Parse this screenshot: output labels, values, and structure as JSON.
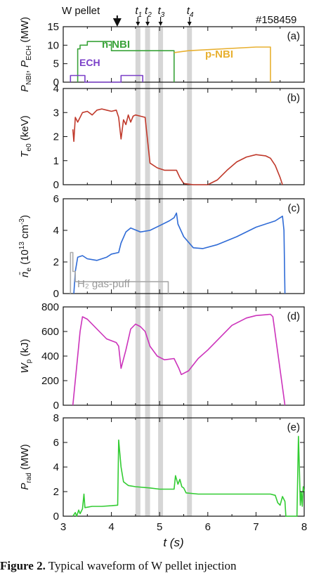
{
  "figure": {
    "shot_number": "#158459",
    "pellet_label": "W pellet",
    "time_markers": [
      {
        "label": "t1",
        "t": 4.55
      },
      {
        "label": "t2",
        "t": 4.75
      },
      {
        "label": "t3",
        "t": 5.02
      },
      {
        "label": "t4",
        "t": 5.62
      }
    ],
    "pellet_time": 4.12,
    "caption_bold": "Figure 2.",
    "caption_text": " Typical waveform of W pellet injection"
  },
  "chart_data": [
    {
      "type": "line",
      "panel": "(a)",
      "ylabel": "P_NBI, P_ECH (MW)",
      "ylim": [
        0,
        15
      ],
      "yticks": [
        0,
        5,
        10,
        15
      ],
      "xlim": [
        3,
        8
      ],
      "series": [
        {
          "name": "n-NBI",
          "color": "#3aa33a",
          "points": [
            [
              3.3,
              0
            ],
            [
              3.3,
              9
            ],
            [
              3.35,
              9
            ],
            [
              3.35,
              10
            ],
            [
              3.5,
              10
            ],
            [
              3.5,
              11
            ],
            [
              4.0,
              11
            ],
            [
              4.0,
              8.5
            ],
            [
              5.3,
              8.5
            ],
            [
              5.3,
              0
            ]
          ]
        },
        {
          "name": "p-NBI",
          "color": "#e8b030",
          "points": [
            [
              5.3,
              8
            ],
            [
              5.6,
              8.5
            ],
            [
              7.0,
              9.5
            ],
            [
              7.3,
              9.5
            ],
            [
              7.3,
              0
            ]
          ]
        },
        {
          "name": "ECH",
          "color": "#7a3fc8",
          "points": [
            [
              3.15,
              0
            ],
            [
              3.15,
              1.8
            ],
            [
              3.45,
              1.8
            ],
            [
              3.45,
              0
            ],
            [
              4.2,
              0
            ],
            [
              4.2,
              1.8
            ],
            [
              4.65,
              1.8
            ],
            [
              4.65,
              0
            ]
          ]
        }
      ]
    },
    {
      "type": "line",
      "panel": "(b)",
      "ylabel": "T_e0 (keV)",
      "ylim": [
        0,
        4
      ],
      "yticks": [
        0,
        1,
        2,
        3,
        4
      ],
      "xlim": [
        3,
        8
      ],
      "series": [
        {
          "name": "",
          "color": "#c0392b",
          "points": [
            [
              3.2,
              2.3
            ],
            [
              3.22,
              1.8
            ],
            [
              3.25,
              2.8
            ],
            [
              3.3,
              2.6
            ],
            [
              3.4,
              3.0
            ],
            [
              3.5,
              3.05
            ],
            [
              3.6,
              2.9
            ],
            [
              3.7,
              3.1
            ],
            [
              3.8,
              3.15
            ],
            [
              3.9,
              3.1
            ],
            [
              4.0,
              3.05
            ],
            [
              4.1,
              3.1
            ],
            [
              4.15,
              2.8
            ],
            [
              4.2,
              1.9
            ],
            [
              4.25,
              2.7
            ],
            [
              4.3,
              2.5
            ],
            [
              4.35,
              2.9
            ],
            [
              4.4,
              2.6
            ],
            [
              4.45,
              2.85
            ],
            [
              4.5,
              2.9
            ],
            [
              4.6,
              2.85
            ],
            [
              4.7,
              2.8
            ],
            [
              4.72,
              2.4
            ],
            [
              4.8,
              0.9
            ],
            [
              4.95,
              0.7
            ],
            [
              5.1,
              0.6
            ],
            [
              5.35,
              0.6
            ],
            [
              5.42,
              0.3
            ],
            [
              5.5,
              0.05
            ],
            [
              5.7,
              0
            ],
            [
              6.0,
              0
            ],
            [
              6.2,
              0.2
            ],
            [
              6.4,
              0.6
            ],
            [
              6.6,
              0.95
            ],
            [
              6.8,
              1.15
            ],
            [
              7.0,
              1.25
            ],
            [
              7.2,
              1.2
            ],
            [
              7.3,
              1.1
            ],
            [
              7.4,
              0.8
            ],
            [
              7.5,
              0.3
            ],
            [
              7.55,
              0
            ]
          ]
        }
      ]
    },
    {
      "type": "line",
      "panel": "(c)",
      "ylabel": "n̄_e (10^13 cm^-3)",
      "ylim": [
        0,
        6
      ],
      "yticks": [
        0,
        2,
        4,
        6
      ],
      "xlim": [
        3,
        8
      ],
      "series": [
        {
          "name": "",
          "color": "#2f6bd6",
          "points": [
            [
              3.22,
              0
            ],
            [
              3.25,
              1.4
            ],
            [
              3.3,
              2.3
            ],
            [
              3.4,
              2.4
            ],
            [
              3.5,
              2.2
            ],
            [
              3.7,
              2.1
            ],
            [
              3.9,
              2.3
            ],
            [
              4.0,
              2.5
            ],
            [
              4.15,
              2.6
            ],
            [
              4.2,
              3.2
            ],
            [
              4.3,
              3.9
            ],
            [
              4.4,
              4.15
            ],
            [
              4.6,
              3.9
            ],
            [
              4.8,
              4.0
            ],
            [
              5.0,
              4.3
            ],
            [
              5.2,
              4.6
            ],
            [
              5.3,
              4.8
            ],
            [
              5.35,
              5.1
            ],
            [
              5.38,
              4.4
            ],
            [
              5.5,
              3.6
            ],
            [
              5.7,
              2.9
            ],
            [
              5.9,
              2.85
            ],
            [
              6.2,
              3.1
            ],
            [
              6.6,
              3.6
            ],
            [
              7.0,
              4.2
            ],
            [
              7.4,
              4.6
            ],
            [
              7.55,
              4.9
            ],
            [
              7.58,
              4.0
            ],
            [
              7.6,
              0
            ]
          ]
        },
        {
          "name": "H2 gas-puff",
          "color": "#aaaaaa",
          "points": [
            [
              3.15,
              0
            ],
            [
              3.15,
              2.6
            ],
            [
              3.2,
              2.6
            ],
            [
              3.2,
              1.4
            ],
            [
              3.25,
              1.4
            ],
            [
              3.25,
              0.75
            ],
            [
              5.18,
              0.75
            ],
            [
              5.18,
              0
            ]
          ]
        }
      ],
      "annotation": "H₂ gas-puff"
    },
    {
      "type": "line",
      "panel": "(d)",
      "ylabel": "W_p (kJ)",
      "ylim": [
        0,
        800
      ],
      "yticks": [
        0,
        200,
        400,
        600,
        800
      ],
      "xlim": [
        3,
        8
      ],
      "series": [
        {
          "name": "",
          "color": "#cc33bb",
          "points": [
            [
              3.2,
              0
            ],
            [
              3.3,
              400
            ],
            [
              3.35,
              600
            ],
            [
              3.4,
              720
            ],
            [
              3.5,
              700
            ],
            [
              3.7,
              620
            ],
            [
              3.9,
              540
            ],
            [
              4.1,
              510
            ],
            [
              4.15,
              480
            ],
            [
              4.2,
              300
            ],
            [
              4.3,
              450
            ],
            [
              4.4,
              620
            ],
            [
              4.5,
              660
            ],
            [
              4.6,
              640
            ],
            [
              4.7,
              600
            ],
            [
              4.8,
              480
            ],
            [
              4.95,
              400
            ],
            [
              5.1,
              370
            ],
            [
              5.3,
              380
            ],
            [
              5.4,
              300
            ],
            [
              5.45,
              250
            ],
            [
              5.6,
              280
            ],
            [
              5.8,
              380
            ],
            [
              6.0,
              450
            ],
            [
              6.2,
              530
            ],
            [
              6.5,
              650
            ],
            [
              6.8,
              710
            ],
            [
              7.0,
              730
            ],
            [
              7.3,
              740
            ],
            [
              7.35,
              720
            ],
            [
              7.6,
              0
            ]
          ]
        }
      ]
    },
    {
      "type": "line",
      "panel": "(e)",
      "ylabel": "P_rad (MW)",
      "ylim": [
        0,
        8
      ],
      "yticks": [
        0,
        2,
        4,
        6,
        8
      ],
      "xlim": [
        3,
        8
      ],
      "xlabel": "t (s)",
      "xticks": [
        3,
        4,
        5,
        6,
        7,
        8
      ],
      "series": [
        {
          "name": "",
          "color": "#33cc33",
          "points": [
            [
              3.2,
              0
            ],
            [
              3.25,
              0.3
            ],
            [
              3.28,
              0
            ],
            [
              3.32,
              0.5
            ],
            [
              3.35,
              0.2
            ],
            [
              3.4,
              0.6
            ],
            [
              3.43,
              1.8
            ],
            [
              3.45,
              0.7
            ],
            [
              3.6,
              0.8
            ],
            [
              3.8,
              0.8
            ],
            [
              4.0,
              0.85
            ],
            [
              4.13,
              0.9
            ],
            [
              4.15,
              6.2
            ],
            [
              4.2,
              4.0
            ],
            [
              4.25,
              2.8
            ],
            [
              4.35,
              2.5
            ],
            [
              4.5,
              2.4
            ],
            [
              4.8,
              2.3
            ],
            [
              5.0,
              2.2
            ],
            [
              5.3,
              2.2
            ],
            [
              5.33,
              3.3
            ],
            [
              5.38,
              2.6
            ],
            [
              5.42,
              3.0
            ],
            [
              5.46,
              2.4
            ],
            [
              5.5,
              2.3
            ],
            [
              5.55,
              1.9
            ],
            [
              5.8,
              1.8
            ],
            [
              6.2,
              1.8
            ],
            [
              6.6,
              1.8
            ],
            [
              7.0,
              1.8
            ],
            [
              7.3,
              1.8
            ],
            [
              7.4,
              1.7
            ],
            [
              7.45,
              1.1
            ],
            [
              7.5,
              0.9
            ],
            [
              7.55,
              1.6
            ],
            [
              7.6,
              1.2
            ],
            [
              7.62,
              0
            ],
            [
              7.85,
              0
            ],
            [
              7.88,
              6.5
            ],
            [
              7.9,
              4.0
            ],
            [
              7.92,
              0.9
            ],
            [
              7.94,
              2.0
            ],
            [
              7.96,
              0.8
            ],
            [
              7.98,
              2.4
            ],
            [
              8.0,
              2.0
            ]
          ]
        }
      ]
    }
  ]
}
